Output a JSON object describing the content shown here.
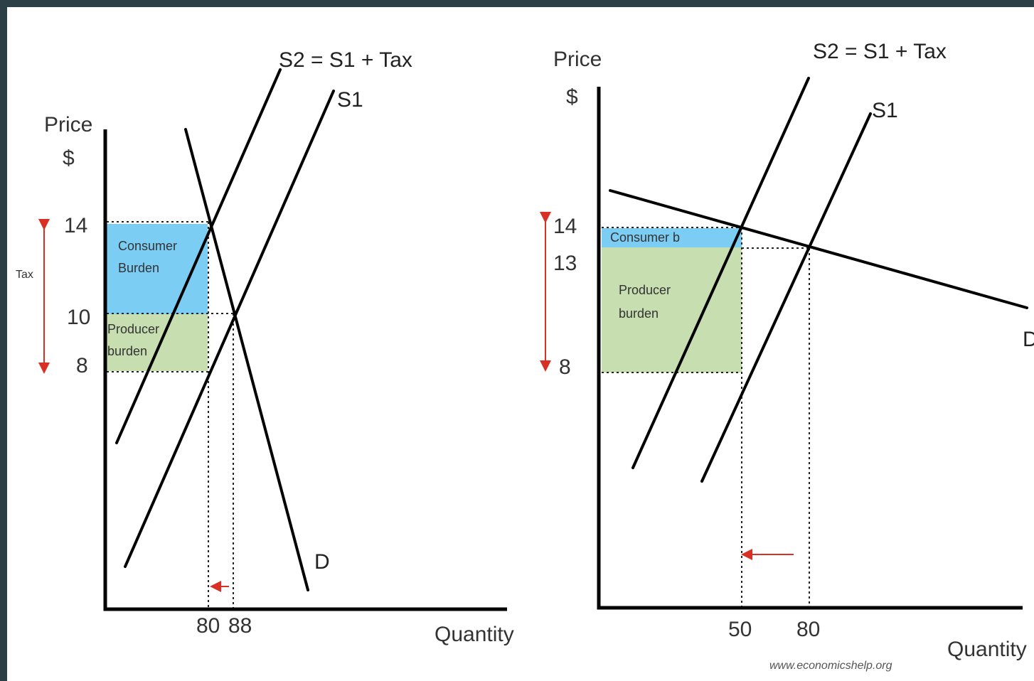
{
  "colors": {
    "consumer_burden": "#7ccdf4",
    "producer_burden": "#c6deb0",
    "arrow": "#d93025",
    "frame": "#2c3e46"
  },
  "left_panel": {
    "y_axis_label": "Price",
    "y_axis_unit": "$",
    "x_axis_label": "Quantity",
    "price_ticks": [
      "14",
      "10",
      "8"
    ],
    "quantity_ticks": [
      "80",
      "88"
    ],
    "curve_s2": "S2 = S1 + Tax",
    "curve_s1": "S1",
    "curve_d": "D",
    "tax_label": "Tax",
    "consumer_label_1": "Consumer",
    "consumer_label_2": "Burden",
    "producer_label_1": "Producer",
    "producer_label_2": "burden"
  },
  "right_panel": {
    "y_axis_label": "Price",
    "y_axis_unit": "$",
    "x_axis_label": "Quantity",
    "price_ticks": [
      "14",
      "13",
      "8"
    ],
    "quantity_ticks": [
      "50",
      "80"
    ],
    "curve_s2": "S2 = S1 + Tax",
    "curve_s1": "S1",
    "curve_d": "D",
    "consumer_label": "Consumer b",
    "producer_label_1": "Producer",
    "producer_label_2": "burden",
    "attribution": "www.economicshelp.org"
  }
}
